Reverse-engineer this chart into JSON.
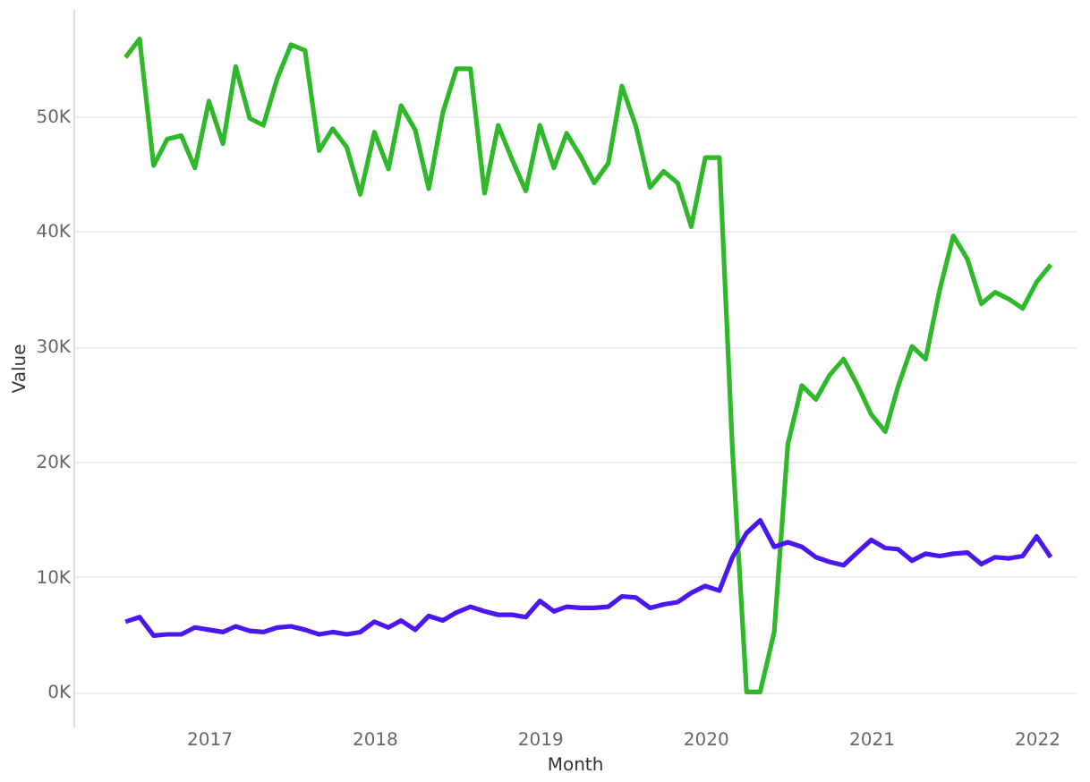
{
  "chart_data": {
    "type": "line",
    "xlabel": "Month",
    "ylabel": "Value",
    "x": [
      "2016-07",
      "2016-08",
      "2016-09",
      "2016-10",
      "2016-11",
      "2016-12",
      "2017-01",
      "2017-02",
      "2017-03",
      "2017-04",
      "2017-05",
      "2017-06",
      "2017-07",
      "2017-08",
      "2017-09",
      "2017-10",
      "2017-11",
      "2017-12",
      "2018-01",
      "2018-02",
      "2018-03",
      "2018-04",
      "2018-05",
      "2018-06",
      "2018-07",
      "2018-08",
      "2018-09",
      "2018-10",
      "2018-11",
      "2018-12",
      "2019-01",
      "2019-02",
      "2019-03",
      "2019-04",
      "2019-05",
      "2019-06",
      "2019-07",
      "2019-08",
      "2019-09",
      "2019-10",
      "2019-11",
      "2019-12",
      "2020-01",
      "2020-02",
      "2020-03",
      "2020-04",
      "2020-05",
      "2020-06",
      "2020-07",
      "2020-08",
      "2020-09",
      "2020-10",
      "2020-11",
      "2020-12",
      "2021-01",
      "2021-02",
      "2021-03",
      "2021-04",
      "2021-05",
      "2021-06",
      "2021-07",
      "2021-08",
      "2021-09",
      "2021-10",
      "2021-11",
      "2021-12",
      "2022-01",
      "2022-02"
    ],
    "series": [
      {
        "color": "#2eb82a",
        "values": [
          55100,
          56700,
          45700,
          48000,
          48300,
          45500,
          51300,
          47600,
          54300,
          49800,
          49200,
          53300,
          56200,
          55700,
          47000,
          48900,
          47300,
          43200,
          48600,
          45400,
          50900,
          48800,
          43700,
          50300,
          54100,
          54100,
          43300,
          49200,
          46200,
          43500,
          49200,
          45500,
          48500,
          46500,
          44200,
          45900,
          52600,
          49100,
          43800,
          45200,
          44200,
          40400,
          46400,
          46400,
          20900,
          0,
          0,
          5200,
          21500,
          26600,
          25400,
          27500,
          28900,
          26700,
          24100,
          22600,
          26500,
          30000,
          28900,
          34900,
          39600,
          37600,
          33700,
          34700,
          34100,
          33300,
          35600,
          37100
        ]
      },
      {
        "color": "#4b16f0",
        "values": [
          6100,
          6500,
          4900,
          5000,
          5000,
          5600,
          5400,
          5200,
          5700,
          5300,
          5200,
          5600,
          5700,
          5400,
          5000,
          5200,
          5000,
          5200,
          6100,
          5600,
          6200,
          5400,
          6600,
          6200,
          6900,
          7400,
          7000,
          6700,
          6700,
          6500,
          7900,
          7000,
          7400,
          7300,
          7300,
          7400,
          8300,
          8200,
          7300,
          7600,
          7800,
          8600,
          9200,
          8800,
          11700,
          13800,
          14900,
          12600,
          13000,
          12600,
          11700,
          11300,
          11000,
          12100,
          13200,
          12500,
          12400,
          11400,
          12000,
          11800,
          12000,
          12100,
          11100,
          11700,
          11600,
          11800,
          13500,
          11700
        ]
      }
    ],
    "ylim": [
      -3000,
      59300
    ],
    "yticks": [
      {
        "value": 0,
        "label": "0K"
      },
      {
        "value": 10000,
        "label": "10K"
      },
      {
        "value": 20000,
        "label": "20K"
      },
      {
        "value": 30000,
        "label": "30K"
      },
      {
        "value": 40000,
        "label": "40K"
      },
      {
        "value": 50000,
        "label": "50K"
      }
    ],
    "xlim": [
      "2016-03-08",
      "2022-03-28"
    ],
    "xticks": [
      {
        "value": "2017-01-01",
        "label": "2017"
      },
      {
        "value": "2018-01-01",
        "label": "2018"
      },
      {
        "value": "2019-01-01",
        "label": "2019"
      },
      {
        "value": "2020-01-01",
        "label": "2020"
      },
      {
        "value": "2021-01-01",
        "label": "2021"
      },
      {
        "value": "2022-01-01",
        "label": "2022"
      }
    ],
    "grid": "y",
    "legend": false,
    "marker": "none",
    "line_style": "solid"
  }
}
